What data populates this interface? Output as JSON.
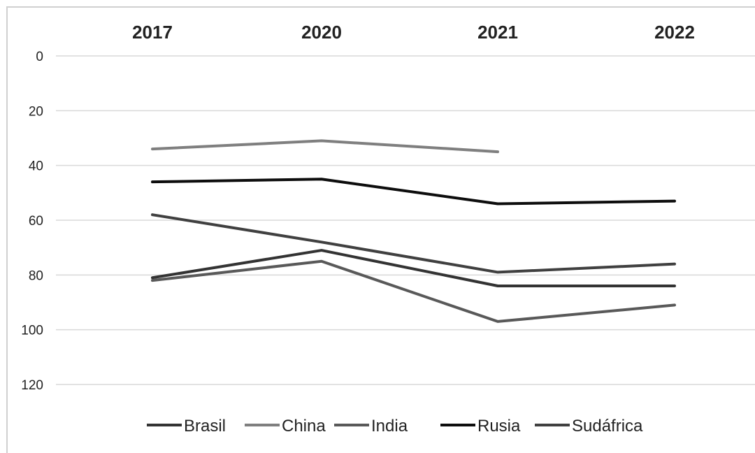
{
  "chart_data": {
    "type": "line",
    "title": "",
    "xlabel": "",
    "ylabel": "",
    "categories": [
      "2017",
      "2020",
      "2021",
      "2022"
    ],
    "y_ticks": [
      "0",
      "20",
      "40",
      "60",
      "80",
      "100",
      "120"
    ],
    "ylim": [
      0,
      120
    ],
    "y_axis_reversed": true,
    "x_axis_position": "top",
    "grid": true,
    "legend_position": "bottom",
    "series": [
      {
        "name": "Brasil",
        "values": [
          81,
          71,
          84,
          84
        ],
        "color": "#333333"
      },
      {
        "name": "China",
        "values": [
          34,
          31,
          35,
          null
        ],
        "color": "#7f7f7f"
      },
      {
        "name": "India",
        "values": [
          82,
          75,
          97,
          91
        ],
        "color": "#595959"
      },
      {
        "name": "Rusia",
        "values": [
          46,
          45,
          54,
          53
        ],
        "color": "#0d0d0d"
      },
      {
        "name": "Sudáfrica",
        "values": [
          58,
          68,
          79,
          76
        ],
        "color": "#404040"
      }
    ]
  }
}
